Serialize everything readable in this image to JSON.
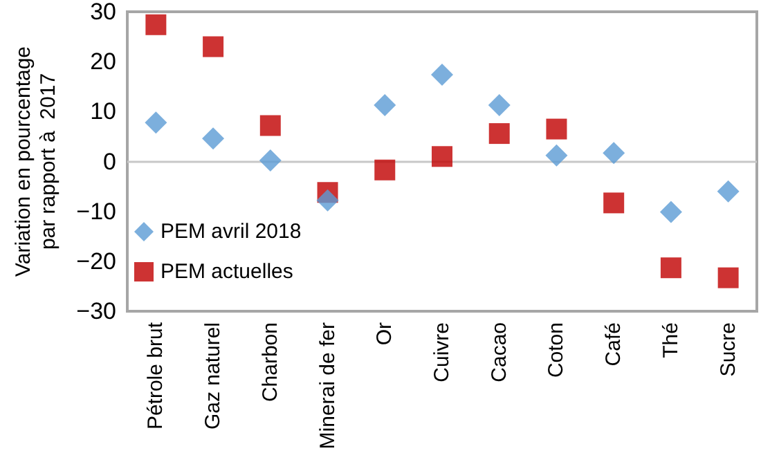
{
  "chart_data": {
    "type": "scatter",
    "ylabel": "Variation en pourcentage\npar rapport à  2017",
    "categories": [
      "Pétrole brut",
      "Gaz naturel",
      "Charbon",
      "Minerai de fer",
      "Or",
      "Cuivre",
      "Cacao",
      "Coton",
      "Café",
      "Thé",
      "Sucre"
    ],
    "series": [
      {
        "name": "PEM avril 2018",
        "color": "#5b9bd5",
        "marker": "diamond",
        "values": [
          7.8,
          4.6,
          0.2,
          -7.8,
          11.3,
          17.4,
          11.3,
          1.2,
          1.7,
          -10.1,
          -6.0
        ]
      },
      {
        "name": "PEM actuelles",
        "color": "#c00000",
        "marker": "square",
        "values": [
          27.4,
          23,
          7.2,
          -6.2,
          -1.7,
          1.0,
          5.6,
          6.5,
          -8.3,
          -21.3,
          -23.3
        ]
      }
    ],
    "ylim": [
      -30,
      30
    ],
    "yticks": [
      -30,
      -20,
      -10,
      0,
      10,
      20,
      30
    ],
    "ref_lines": [
      {
        "axis": "y",
        "value": 0,
        "color": "#c8c8c8"
      }
    ],
    "grid": false,
    "legend": "bottom left"
  }
}
